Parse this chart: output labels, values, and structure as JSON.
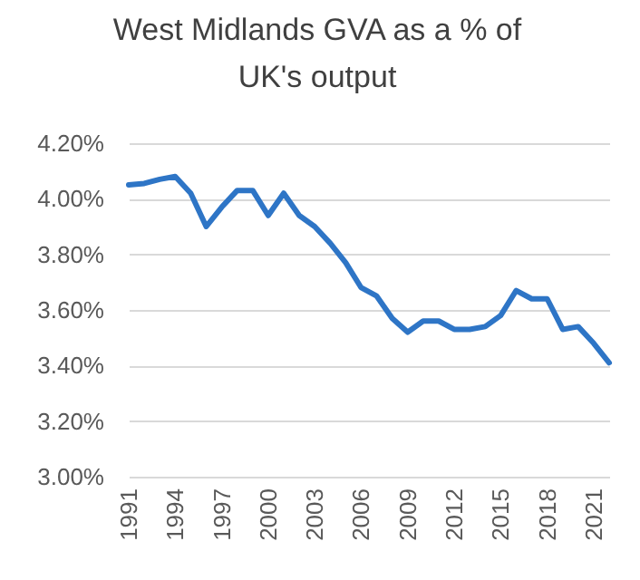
{
  "chart_data": {
    "type": "line",
    "title": "West Midlands GVA as a % of UK's output",
    "categories": [
      "1991",
      null,
      null,
      "1994",
      null,
      null,
      "1997",
      null,
      null,
      "2000",
      null,
      null,
      "2003",
      null,
      null,
      "2006",
      null,
      null,
      "2009",
      null,
      null,
      "2012",
      null,
      null,
      "2015",
      null,
      null,
      "2018",
      null,
      null,
      "2021",
      null
    ],
    "series": [
      {
        "color": "#2e75c6",
        "values": [
          4.05,
          4.055,
          4.07,
          4.08,
          4.02,
          3.9,
          3.97,
          4.03,
          4.03,
          3.94,
          4.02,
          3.94,
          3.9,
          3.84,
          3.77,
          3.68,
          3.65,
          3.57,
          3.52,
          3.56,
          3.56,
          3.53,
          3.53,
          3.54,
          3.58,
          3.67,
          3.64,
          3.64,
          3.53,
          3.54,
          3.48,
          3.41
        ]
      }
    ],
    "ylim": [
      3.0,
      4.2
    ],
    "yticks": [
      {
        "value": 3.0,
        "label": "3.00%"
      },
      {
        "value": 3.2,
        "label": "3.20%"
      },
      {
        "value": 3.4,
        "label": "3.40%"
      },
      {
        "value": 3.6,
        "label": "3.60%"
      },
      {
        "value": 3.8,
        "label": "3.80%"
      },
      {
        "value": 4.0,
        "label": "4.00%"
      },
      {
        "value": 4.2,
        "label": "4.20%"
      }
    ],
    "grid": "y",
    "marker": "none",
    "line_style": "solid"
  }
}
